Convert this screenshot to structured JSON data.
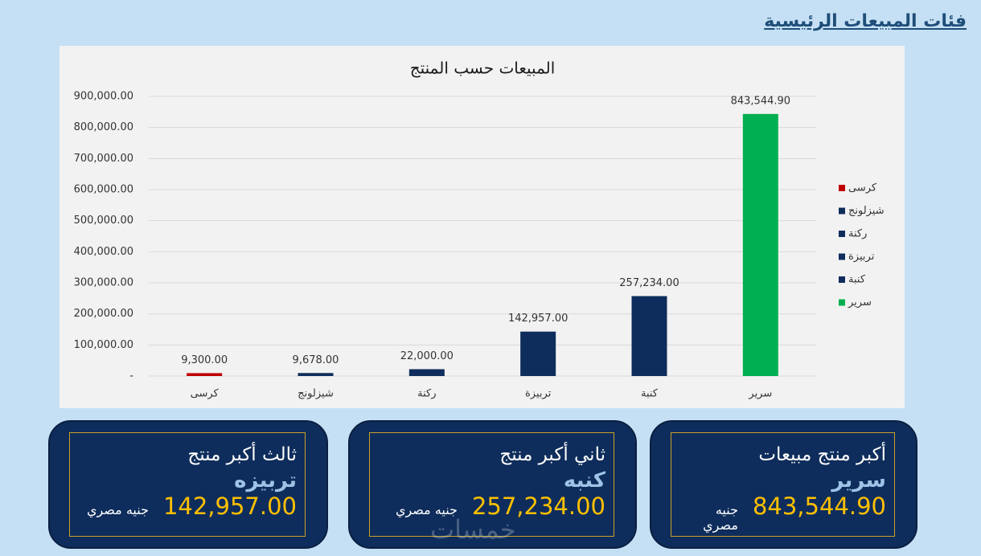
{
  "header": {
    "title": "فئات المبيعات الرئيسية"
  },
  "chart_data": {
    "type": "bar",
    "title": "المبيعات حسب المنتج",
    "categories": [
      "كرسى",
      "شيزلونج",
      "ركنة",
      "تربيزة",
      "كنبة",
      "سرير"
    ],
    "values": [
      9300,
      9678,
      22000,
      142957,
      257234,
      843544.9
    ],
    "value_labels": [
      "9,300.00",
      "9,678.00",
      "22,000.00",
      "142,957.00",
      "257,234.00",
      "843,544.90"
    ],
    "colors": [
      "#c00000",
      "#0e2d5c",
      "#0e2d5c",
      "#0e2d5c",
      "#0e2d5c",
      "#00b050"
    ],
    "ylim": [
      0,
      900000
    ],
    "yticks": [
      {
        "value": 0,
        "label": "-"
      },
      {
        "value": 100000,
        "label": "100,000.00"
      },
      {
        "value": 200000,
        "label": "200,000.00"
      },
      {
        "value": 300000,
        "label": "300,000.00"
      },
      {
        "value": 400000,
        "label": "400,000.00"
      },
      {
        "value": 500000,
        "label": "500,000.00"
      },
      {
        "value": 600000,
        "label": "600,000.00"
      },
      {
        "value": 700000,
        "label": "700,000.00"
      },
      {
        "value": 800000,
        "label": "800,000.00"
      },
      {
        "value": 900000,
        "label": "900,000.00"
      }
    ],
    "grid": true,
    "legend": "right"
  },
  "cards": [
    {
      "title": "أكبر منتج مبيعات",
      "product": "سرير",
      "value": "843,544.90",
      "currency": "جنيه مصري"
    },
    {
      "title": "ثاني أكبر منتج",
      "product": "كنبه",
      "value": "257,234.00",
      "currency": "جنيه مصري"
    },
    {
      "title": "ثالث أكبر منتج",
      "product": "تربيزه",
      "value": "142,957.00",
      "currency": "جنيه مصري"
    }
  ],
  "watermark": "خمسات"
}
